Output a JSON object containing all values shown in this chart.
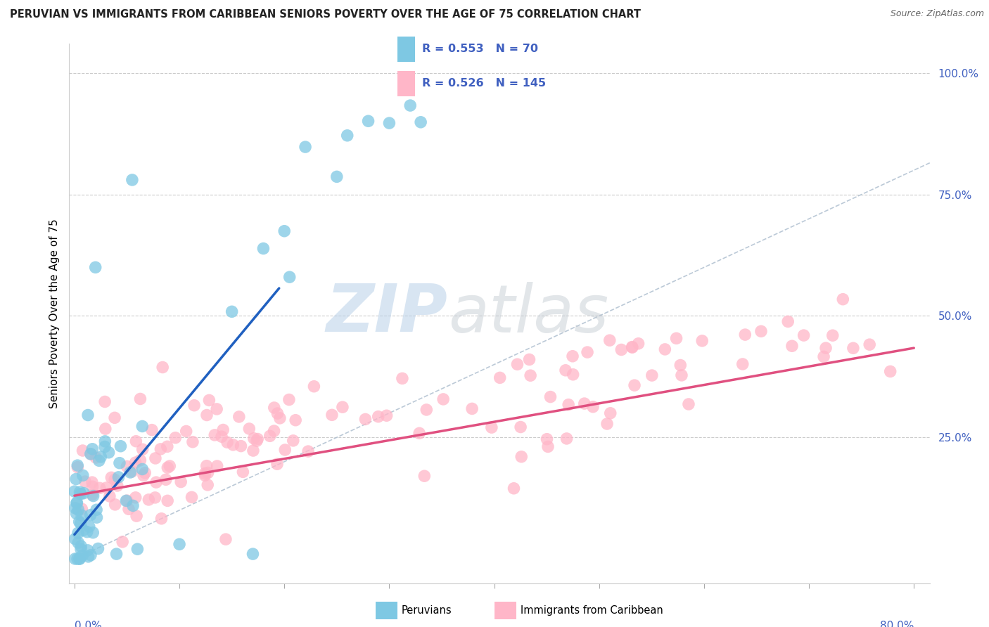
{
  "title": "PERUVIAN VS IMMIGRANTS FROM CARIBBEAN SENIORS POVERTY OVER THE AGE OF 75 CORRELATION CHART",
  "source": "Source: ZipAtlas.com",
  "ylabel": "Seniors Poverty Over the Age of 75",
  "R_peruvian": 0.553,
  "N_peruvian": 70,
  "R_caribbean": 0.526,
  "N_caribbean": 145,
  "color_peruvian": "#7ec8e3",
  "color_caribbean": "#ffb6c8",
  "regression_peruvian_color": "#2060c0",
  "regression_caribbean_color": "#e05080",
  "legend_label_peruvian": "Peruvians",
  "legend_label_caribbean": "Immigrants from Caribbean",
  "watermark_zip": "ZIP",
  "watermark_atlas": "atlas",
  "watermark_color_zip": "#b8cee0",
  "watermark_color_atlas": "#c8c8c8",
  "background_color": "#ffffff",
  "title_fontsize": 10.5,
  "ytick_color": "#4060c0",
  "xtick_color": "#4060c0",
  "grid_color": "#cccccc",
  "ref_line_color": "#b0c0d0"
}
